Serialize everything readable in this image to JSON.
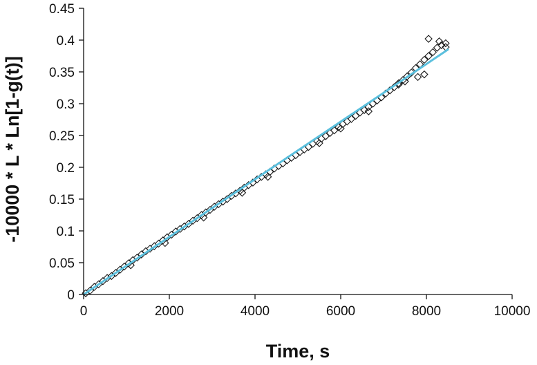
{
  "chart_data": {
    "type": "scatter",
    "title": "",
    "xlabel": "Time, s",
    "ylabel": "-10000 * L * Ln[1-g(t)]",
    "xlim": [
      0,
      10000
    ],
    "ylim": [
      0,
      0.45
    ],
    "x_ticks": [
      0,
      2000,
      4000,
      6000,
      8000,
      10000
    ],
    "y_ticks": [
      0,
      0.05,
      0.1,
      0.15,
      0.2,
      0.25,
      0.3,
      0.35,
      0.4,
      0.45
    ],
    "x_tick_labels": [
      "0",
      "2000",
      "4000",
      "6000",
      "8000",
      "10000"
    ],
    "y_tick_labels": [
      "0",
      "0.05",
      "0.1",
      "0.15",
      "0.2",
      "0.25",
      "0.3",
      "0.35",
      "0.4",
      "0.45"
    ],
    "grid": false,
    "legend": "none",
    "colors": {
      "markers": "#1a1a1a",
      "fit_line": "#5bc0de",
      "axes": "#111111"
    },
    "series": [
      {
        "marker": "diamond-open",
        "points": [
          [
            50,
            0.002
          ],
          [
            150,
            0.006
          ],
          [
            250,
            0.012
          ],
          [
            350,
            0.016
          ],
          [
            450,
            0.021
          ],
          [
            550,
            0.026
          ],
          [
            650,
            0.029
          ],
          [
            750,
            0.034
          ],
          [
            850,
            0.039
          ],
          [
            950,
            0.044
          ],
          [
            1050,
            0.049
          ],
          [
            1150,
            0.054
          ],
          [
            1250,
            0.058
          ],
          [
            1350,
            0.063
          ],
          [
            1450,
            0.068
          ],
          [
            1550,
            0.072
          ],
          [
            1650,
            0.076
          ],
          [
            1750,
            0.08
          ],
          [
            1850,
            0.085
          ],
          [
            1950,
            0.09
          ],
          [
            2050,
            0.094
          ],
          [
            2150,
            0.099
          ],
          [
            2250,
            0.103
          ],
          [
            2350,
            0.107
          ],
          [
            2450,
            0.111
          ],
          [
            2550,
            0.116
          ],
          [
            2650,
            0.12
          ],
          [
            2750,
            0.125
          ],
          [
            2850,
            0.129
          ],
          [
            2950,
            0.133
          ],
          [
            3050,
            0.138
          ],
          [
            3150,
            0.142
          ],
          [
            3250,
            0.146
          ],
          [
            3350,
            0.15
          ],
          [
            3450,
            0.155
          ],
          [
            3550,
            0.159
          ],
          [
            3650,
            0.163
          ],
          [
            3750,
            0.168
          ],
          [
            3850,
            0.172
          ],
          [
            3950,
            0.176
          ],
          [
            4050,
            0.181
          ],
          [
            4150,
            0.185
          ],
          [
            4250,
            0.189
          ],
          [
            4350,
            0.193
          ],
          [
            4450,
            0.198
          ],
          [
            4550,
            0.202
          ],
          [
            4650,
            0.206
          ],
          [
            4750,
            0.211
          ],
          [
            4850,
            0.215
          ],
          [
            4950,
            0.219
          ],
          [
            5050,
            0.224
          ],
          [
            5150,
            0.228
          ],
          [
            5250,
            0.232
          ],
          [
            5350,
            0.237
          ],
          [
            5450,
            0.241
          ],
          [
            5550,
            0.245
          ],
          [
            5650,
            0.249
          ],
          [
            5750,
            0.254
          ],
          [
            5850,
            0.258
          ],
          [
            5950,
            0.263
          ],
          [
            6050,
            0.268
          ],
          [
            6150,
            0.272
          ],
          [
            6250,
            0.276
          ],
          [
            6350,
            0.281
          ],
          [
            6450,
            0.286
          ],
          [
            6550,
            0.29
          ],
          [
            6650,
            0.295
          ],
          [
            6750,
            0.3
          ],
          [
            6850,
            0.305
          ],
          [
            6950,
            0.31
          ],
          [
            7050,
            0.316
          ],
          [
            7150,
            0.321
          ],
          [
            7250,
            0.326
          ],
          [
            7350,
            0.332
          ],
          [
            7450,
            0.337
          ],
          [
            7550,
            0.343
          ],
          [
            7650,
            0.349
          ],
          [
            7750,
            0.356
          ],
          [
            7850,
            0.362
          ],
          [
            7950,
            0.369
          ],
          [
            8050,
            0.375
          ],
          [
            8150,
            0.381
          ],
          [
            8250,
            0.388
          ],
          [
            8350,
            0.392
          ],
          [
            8450,
            0.395
          ],
          [
            7350,
            0.33
          ],
          [
            7500,
            0.335
          ],
          [
            7800,
            0.342
          ],
          [
            7950,
            0.346
          ],
          [
            8050,
            0.402
          ],
          [
            8300,
            0.398
          ],
          [
            8450,
            0.389
          ],
          [
            5500,
            0.238
          ],
          [
            6000,
            0.261
          ],
          [
            6650,
            0.288
          ],
          [
            4300,
            0.185
          ],
          [
            3700,
            0.16
          ],
          [
            2800,
            0.121
          ],
          [
            1900,
            0.081
          ],
          [
            1100,
            0.046
          ]
        ]
      },
      {
        "marker": "line",
        "points": [
          [
            0,
            0
          ],
          [
            8500,
            0.385
          ]
        ]
      }
    ]
  }
}
